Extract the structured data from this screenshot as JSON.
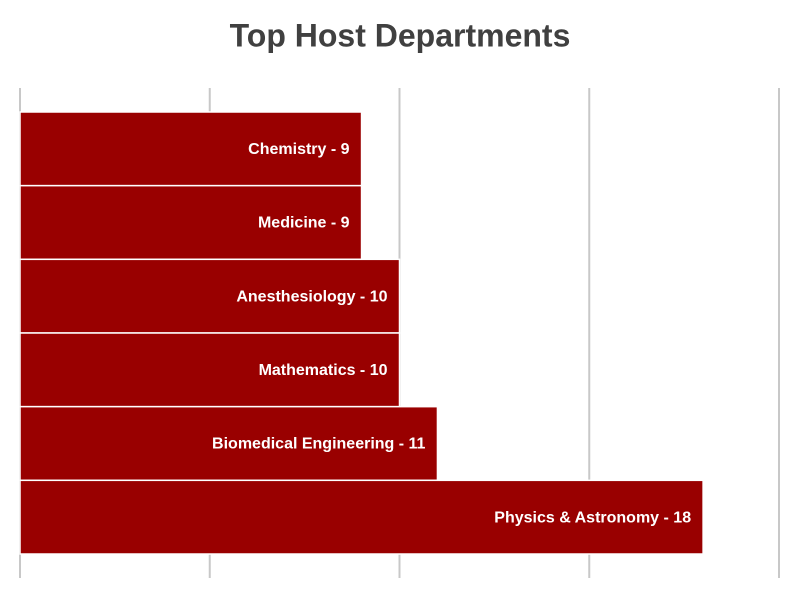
{
  "chart_data": {
    "type": "bar",
    "orientation": "horizontal",
    "title": "Top Host Departments",
    "values": [
      9,
      9,
      10,
      10,
      11,
      18
    ],
    "value_labels": [
      "Chemistry - 9",
      "Medicine - 9",
      "Anesthesiology - 10",
      "Mathematics - 10",
      "Biomedical Engineering - 11",
      "Physics & Astronomy - 18"
    ],
    "color": "#990000",
    "xlim": [
      0,
      20
    ],
    "xticks": [
      0,
      5,
      10,
      15,
      20
    ],
    "grid": true
  }
}
